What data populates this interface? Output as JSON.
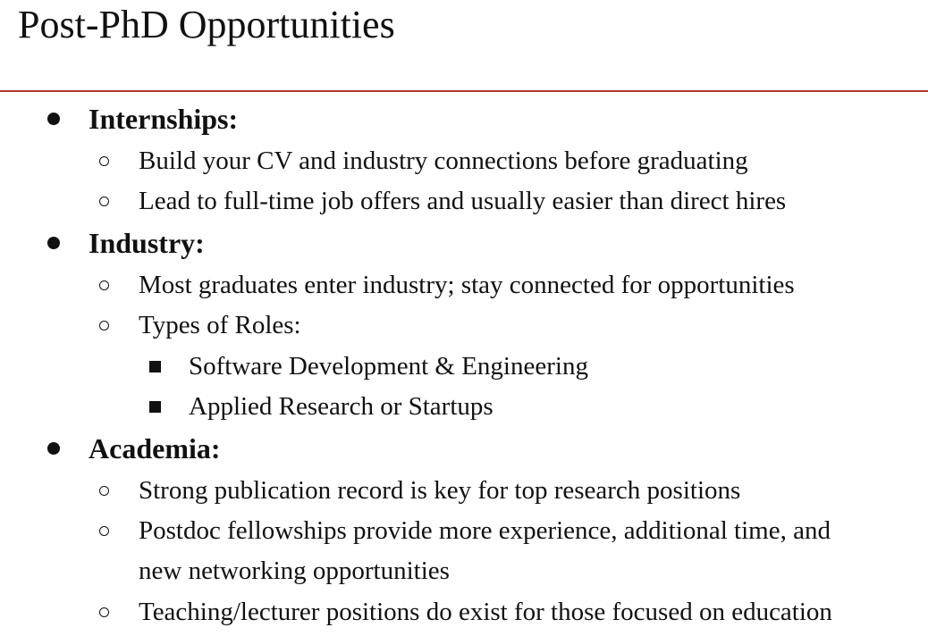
{
  "slide": {
    "title": "Post-PhD Opportunities",
    "accent_color": "#b03a2e",
    "sections": [
      {
        "heading": "Internships:",
        "items": [
          {
            "text": "Build your CV and industry connections before graduating"
          },
          {
            "text": "Lead to full-time job offers and usually easier than direct hires"
          }
        ]
      },
      {
        "heading": "Industry:",
        "items": [
          {
            "text": "Most graduates enter industry; stay connected for opportunities"
          },
          {
            "text": "Types of Roles:",
            "subitems": [
              "Software Development & Engineering",
              "Applied Research or Startups"
            ]
          }
        ]
      },
      {
        "heading": "Academia:",
        "items": [
          {
            "text": "Strong publication record is key for top research positions"
          },
          {
            "text_line1": "Postdoc fellowships provide more experience, additional time, and",
            "text_line2": "new networking opportunities"
          },
          {
            "text": "Teaching/lecturer positions do exist for those focused on education"
          }
        ]
      }
    ]
  }
}
